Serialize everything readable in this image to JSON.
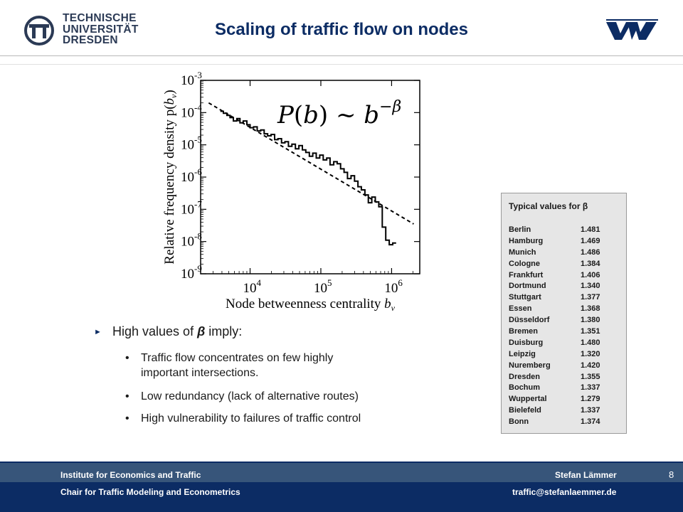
{
  "header": {
    "title": "Scaling of traffic flow on nodes",
    "logo_left": [
      "TECHNISCHE",
      "UNIVERSITÄT",
      "DRESDEN"
    ]
  },
  "chart_data": {
    "type": "line",
    "xscale": "log",
    "yscale": "log",
    "xlim": [
      2000,
      2500000
    ],
    "ylim": [
      1e-09,
      0.001
    ],
    "xlabel": "Node betweenness centrality b_v",
    "ylabel": "Relative frequency density p(b_v)",
    "x_ticks": [
      {
        "value": 10000,
        "base": "10",
        "exp": "4"
      },
      {
        "value": 100000,
        "base": "10",
        "exp": "5"
      },
      {
        "value": 1000000,
        "base": "10",
        "exp": "6"
      }
    ],
    "y_ticks": [
      {
        "value": 0.001,
        "base": "10",
        "exp": "-3"
      },
      {
        "value": 0.0001,
        "base": "10",
        "exp": "-4"
      },
      {
        "value": 1e-05,
        "base": "10",
        "exp": "-5"
      },
      {
        "value": 1e-06,
        "base": "10",
        "exp": "-6"
      },
      {
        "value": 1e-07,
        "base": "10",
        "exp": "-7"
      },
      {
        "value": 1e-08,
        "base": "10",
        "exp": "-8"
      },
      {
        "value": 1e-09,
        "base": "10",
        "exp": "-9"
      }
    ],
    "annotation": "P(b) ~ b^-β",
    "series": [
      {
        "style": "step",
        "x": [
          3800,
          4200,
          4700,
          5200,
          5800,
          6500,
          7200,
          8000,
          9000,
          10000,
          11200,
          12600,
          14100,
          15800,
          17700,
          19800,
          22200,
          24800,
          27800,
          31100,
          34800,
          39000,
          43700,
          48900,
          54800,
          61300,
          68700,
          76900,
          86100,
          96400,
          108000,
          121000,
          135000,
          152000,
          170000,
          190000,
          213000,
          238000,
          267000,
          299000,
          334000,
          374000,
          419000,
          469000,
          525000,
          588000,
          659000,
          738000,
          826000,
          925000,
          1036000
        ],
        "y": [
          0.00011,
          9.5e-05,
          8.2e-05,
          7e-05,
          5.5e-05,
          6.5e-05,
          4.8e-05,
          5.5e-05,
          4.2e-05,
          3.4e-05,
          3.6e-05,
          2.7e-05,
          2.9e-05,
          2.2e-05,
          1.9e-05,
          2.1e-05,
          1.45e-05,
          1.55e-05,
          1.15e-05,
          1.25e-05,
          9e-06,
          1.05e-05,
          7.5e-06,
          9.5e-06,
          7e-06,
          5.8e-06,
          4.4e-06,
          5.5e-06,
          3.9e-06,
          4.8e-06,
          3.4e-06,
          3.9e-06,
          2.4e-06,
          3e-06,
          2.6e-06,
          1.8e-06,
          1.4e-06,
          9e-07,
          1.1e-06,
          7.5e-07,
          5e-07,
          4e-07,
          2.8e-07,
          1.6e-07,
          2.4e-07,
          1.7e-07,
          1.2e-07,
          2.8e-08,
          1.1e-08,
          8e-09,
          9e-09
        ]
      },
      {
        "style": "dashed",
        "x": [
          2600,
          2050000
        ],
        "y": [
          0.0002,
          3.5e-08
        ]
      }
    ]
  },
  "bullets": {
    "main_prefix": "High values of ",
    "main_symbol": "β",
    "main_suffix": " imply:",
    "sub": [
      "Traffic flow concentrates on few highly important intersections.",
      "Low redundancy (lack of alternative routes)",
      "High vulnerability to failures of traffic control"
    ]
  },
  "beta_table": {
    "title": "Typical values for β",
    "rows": [
      {
        "city": "Berlin",
        "value": "1.481"
      },
      {
        "city": "Hamburg",
        "value": "1.469"
      },
      {
        "city": "Munich",
        "value": "1.486"
      },
      {
        "city": "Cologne",
        "value": "1.384"
      },
      {
        "city": "Frankfurt",
        "value": "1.406"
      },
      {
        "city": "Dortmund",
        "value": "1.340"
      },
      {
        "city": "Stuttgart",
        "value": "1.377"
      },
      {
        "city": "Essen",
        "value": "1.368"
      },
      {
        "city": "Düsseldorf",
        "value": "1.380"
      },
      {
        "city": "Bremen",
        "value": "1.351"
      },
      {
        "city": "Duisburg",
        "value": "1.480"
      },
      {
        "city": "Leipzig",
        "value": "1.320"
      },
      {
        "city": "Nuremberg",
        "value": "1.420"
      },
      {
        "city": "Dresden",
        "value": "1.355"
      },
      {
        "city": "Bochum",
        "value": "1.337"
      },
      {
        "city": "Wuppertal",
        "value": "1.279"
      },
      {
        "city": "Bielefeld",
        "value": "1.337"
      },
      {
        "city": "Bonn",
        "value": "1.374"
      }
    ]
  },
  "footer": {
    "institute": "Institute for Economics and Traffic",
    "author": "Stefan Lämmer",
    "chair": "Chair for Traffic Modeling and Econometrics",
    "email": "traffic@stefanlaemmer.de",
    "page": "8"
  },
  "colors": {
    "title": "#0c2c64",
    "footer_top": "#37557a",
    "footer_bottom": "#0c2c64",
    "table_bg": "#e6e6e6"
  }
}
